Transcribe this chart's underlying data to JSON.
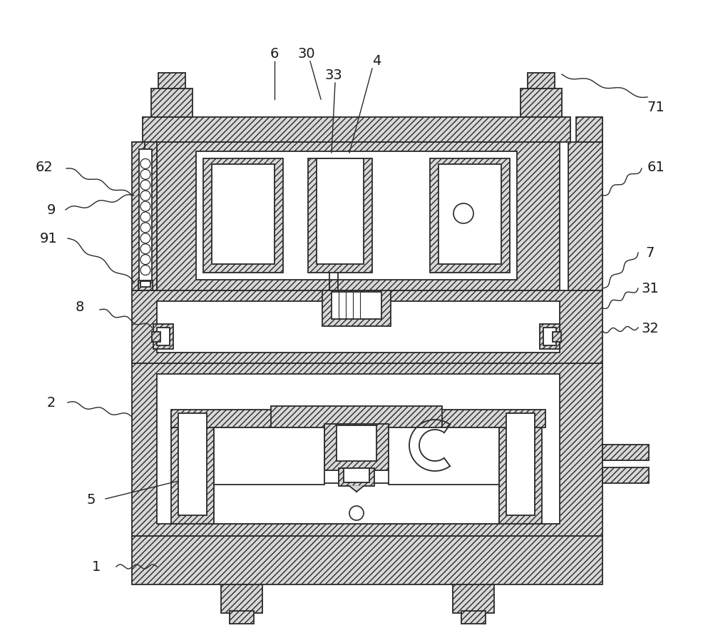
{
  "bg_color": "#ffffff",
  "line_color": "#2a2a2a",
  "hatch_fc": "#d8d8d8",
  "lw": 1.3,
  "fs": 14,
  "ann_lw": 1.0
}
